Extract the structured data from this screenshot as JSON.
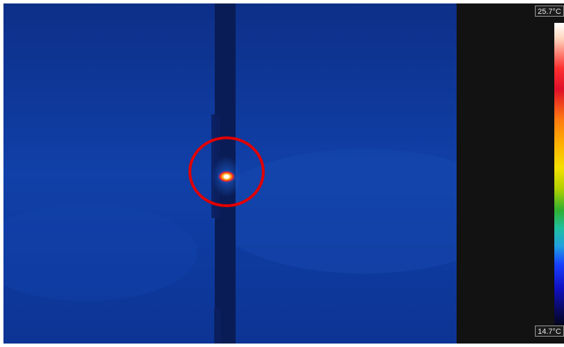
{
  "scale": {
    "max_label": "25.7°C",
    "min_label": "14.7°C",
    "palette": [
      "#ffffff",
      "#ffd8c0",
      "#ff3030",
      "#e0102a",
      "#ff7a10",
      "#ffb000",
      "#f5e000",
      "#b0d000",
      "#30b030",
      "#20c0a0",
      "#20a0e0",
      "#1840ff",
      "#1010c0",
      "#0a0a60",
      "#050520"
    ]
  },
  "colors": {
    "background_blue": "#0e3a9e",
    "dark_post": "#0a1a4a",
    "sidebar": "#121212",
    "marker_circle": "#e00000",
    "hotspot_core": "#ffffff"
  }
}
